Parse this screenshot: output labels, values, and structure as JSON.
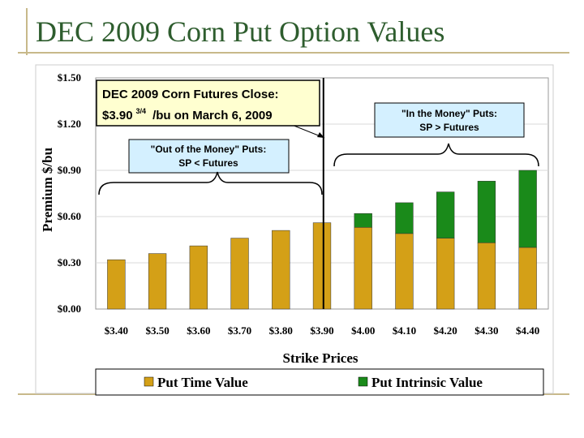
{
  "title": "DEC 2009 Corn Put Option Values",
  "chart_data": {
    "type": "bar",
    "stacked": true,
    "categories": [
      "$3.40",
      "$3.50",
      "$3.60",
      "$3.70",
      "$3.80",
      "$3.90",
      "$4.00",
      "$4.10",
      "$4.20",
      "$4.30",
      "$4.40"
    ],
    "series": [
      {
        "name": "Put Time Value",
        "color": "#d4a017",
        "values": [
          0.32,
          0.36,
          0.41,
          0.46,
          0.51,
          0.56,
          0.53,
          0.49,
          0.46,
          0.43,
          0.4
        ]
      },
      {
        "name": "Put Intrinsic Value",
        "color": "#1a8a1a",
        "values": [
          0,
          0,
          0,
          0,
          0,
          0,
          0.09,
          0.2,
          0.3,
          0.4,
          0.5
        ]
      }
    ],
    "ylabel": "Premium $/bu",
    "xlabel": "Strike Prices",
    "ylim": [
      0,
      1.5
    ],
    "yticks": [
      "$0.00",
      "$0.30",
      "$0.60",
      "$0.90",
      "$1.20",
      "$1.50"
    ],
    "ytick_values": [
      0,
      0.3,
      0.6,
      0.9,
      1.2,
      1.5
    ],
    "futures_close": 3.9075,
    "legend_position": "bottom",
    "annotations": {
      "futures_box": {
        "line1": "DEC 2009 Corn Futures Close:",
        "line2_a": "$3.90",
        "line2_sup": "3/4",
        "line2_b": "/bu on March 6, 2009"
      },
      "otm_box": {
        "line1": "\"Out of the Money\" Puts:",
        "line2": "SP < Futures"
      },
      "itm_box": {
        "line1": "\"In the Money\" Puts:",
        "line2": "SP > Futures"
      }
    }
  }
}
